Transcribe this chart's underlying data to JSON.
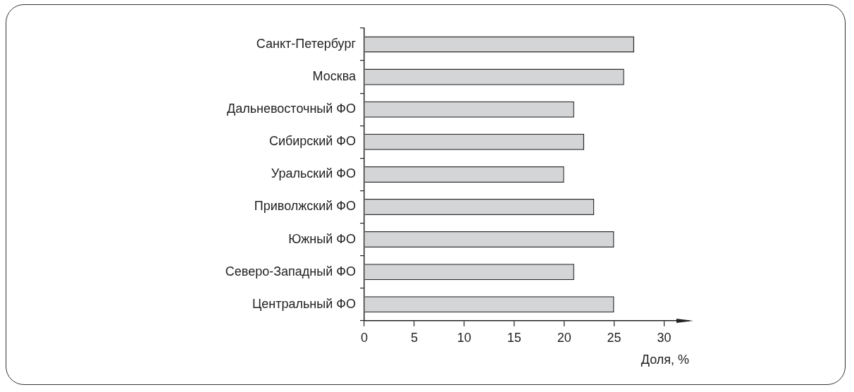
{
  "chart_data": {
    "type": "bar",
    "orientation": "horizontal",
    "xlabel": "Доля, %",
    "categories": [
      "Санкт-Петербург",
      "Москва",
      "Дальневосточный ФО",
      "Сибирский ФО",
      "Уральский ФО",
      "Приволжский ФО",
      "Южный ФО",
      "Северо-Западный ФО",
      "Центральный ФО"
    ],
    "values": [
      27,
      26,
      21,
      22,
      20,
      23,
      25,
      21,
      25
    ],
    "color": "#d4d5d7",
    "xlim": [
      0,
      32.5
    ],
    "xticks": [
      0,
      5,
      10,
      15,
      20,
      25,
      30
    ],
    "grid": false,
    "legend": false
  }
}
